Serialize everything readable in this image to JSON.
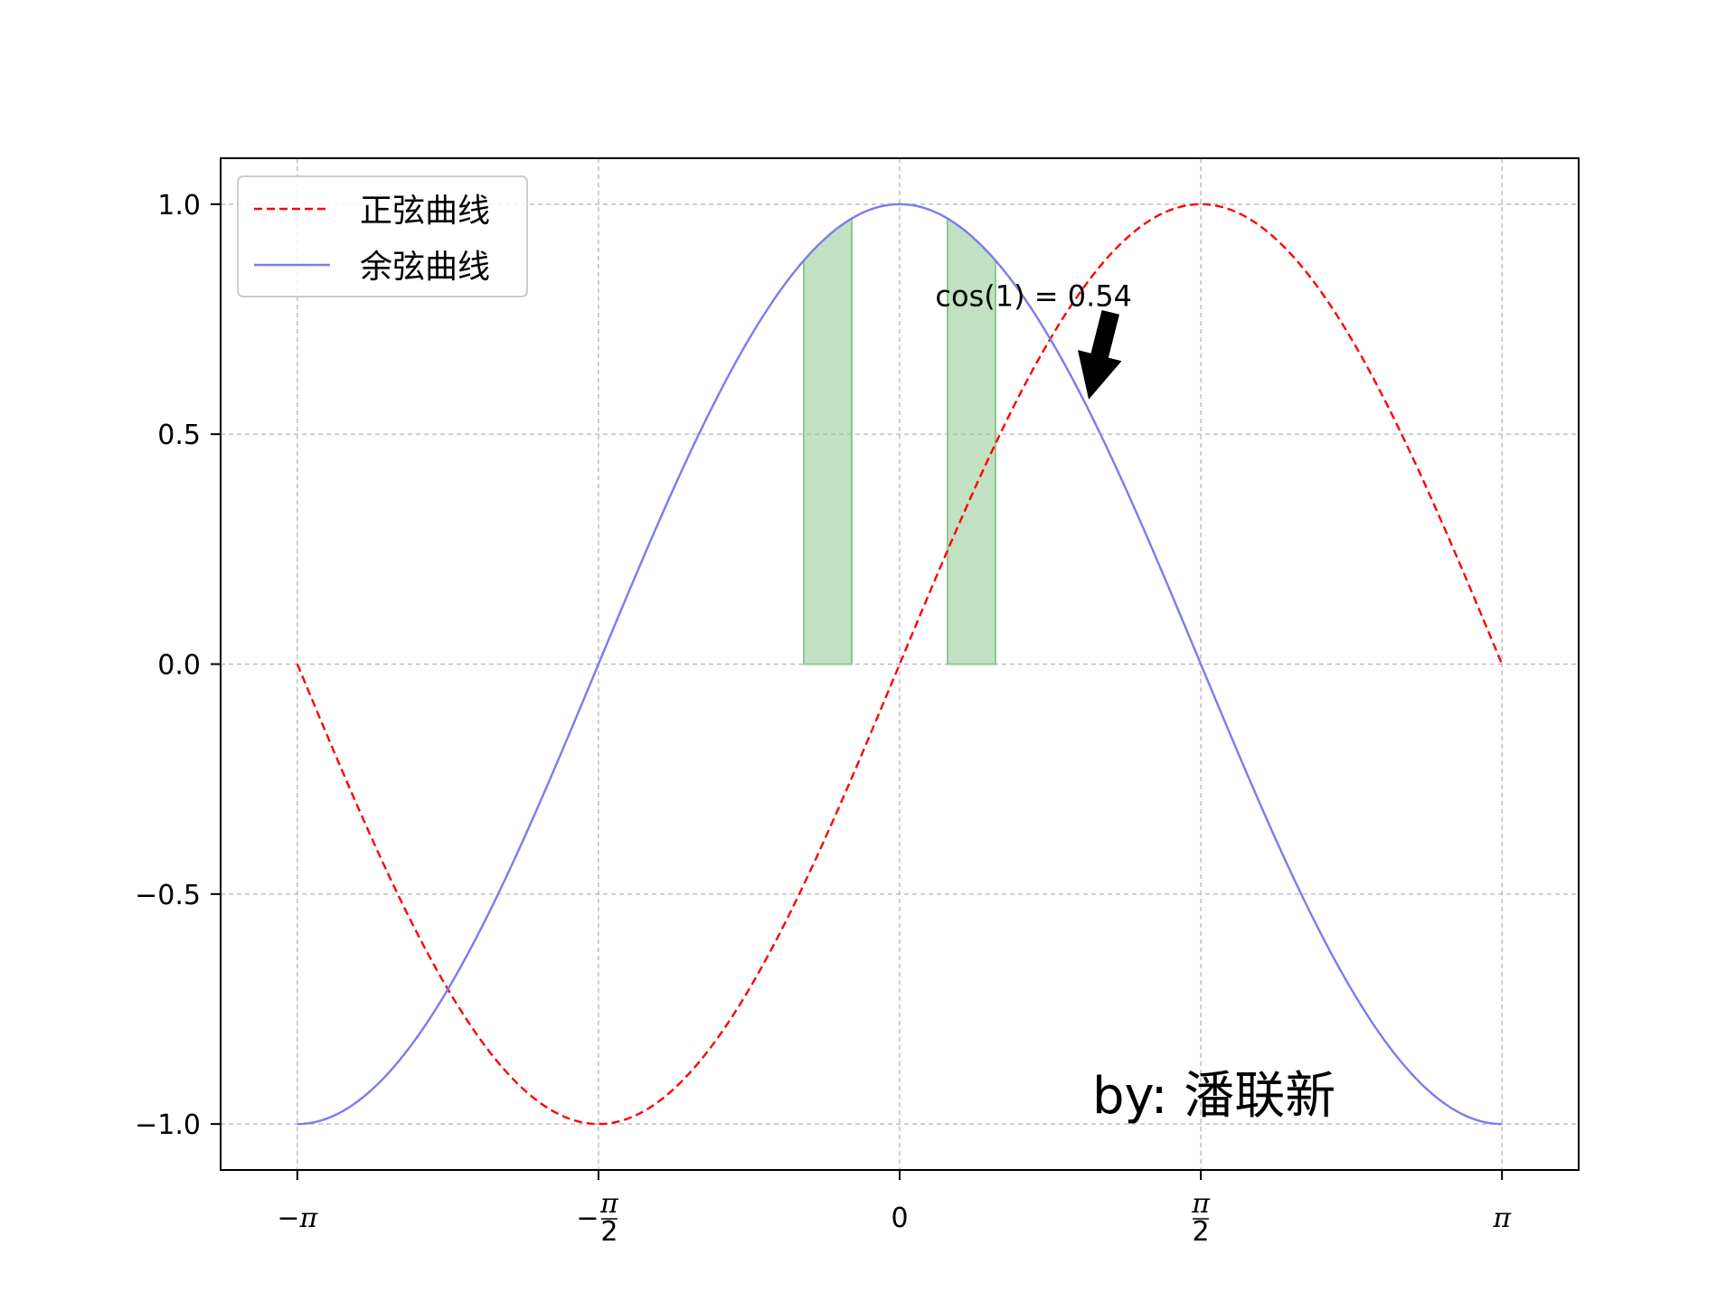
{
  "chart_data": {
    "type": "line",
    "title": "",
    "xlabel": "",
    "ylabel": "",
    "xlim": [
      -3.5416,
      3.5416
    ],
    "ylim": [
      -1.1,
      1.1
    ],
    "grid": true,
    "legend_position": "upper-left",
    "x_ticks": [
      {
        "value": -3.14159,
        "label": "−π"
      },
      {
        "value": -1.5708,
        "label": "−π/2"
      },
      {
        "value": 0,
        "label": "0"
      },
      {
        "value": 1.5708,
        "label": "π/2"
      },
      {
        "value": 3.14159,
        "label": "π"
      }
    ],
    "y_ticks": [
      {
        "value": 1.0,
        "label": "1.0"
      },
      {
        "value": 0.5,
        "label": "0.5"
      },
      {
        "value": 0.0,
        "label": "0.0"
      },
      {
        "value": -0.5,
        "label": "−0.5"
      },
      {
        "value": -1.0,
        "label": "−1.0"
      }
    ],
    "series": [
      {
        "name": "正弦曲线",
        "function": "sin",
        "color": "#ff0000",
        "style": "dashed",
        "x_range": [
          -3.14159,
          3.14159
        ],
        "samples": [
          [
            -3.1416,
            0.0
          ],
          [
            -2.3562,
            -0.7071
          ],
          [
            -1.5708,
            -1.0
          ],
          [
            -0.7854,
            -0.7071
          ],
          [
            0,
            0.0
          ],
          [
            0.7854,
            0.7071
          ],
          [
            1.5708,
            1.0
          ],
          [
            2.3562,
            0.7071
          ],
          [
            3.1416,
            0.0
          ]
        ]
      },
      {
        "name": "余弦曲线",
        "function": "cos",
        "color": "#7b7bf0",
        "style": "solid",
        "x_range": [
          -3.14159,
          3.14159
        ],
        "samples": [
          [
            -3.1416,
            -1.0
          ],
          [
            -2.3562,
            -0.7071
          ],
          [
            -1.5708,
            0.0
          ],
          [
            -0.7854,
            0.7071
          ],
          [
            0,
            1.0
          ],
          [
            0.7854,
            0.7071
          ],
          [
            1.5708,
            0.0
          ],
          [
            2.3562,
            -0.7071
          ],
          [
            3.1416,
            -1.0
          ]
        ]
      }
    ],
    "fills": [
      {
        "x_from": -0.5,
        "x_to": -0.25,
        "under": "cos",
        "color": "#8fc88f"
      },
      {
        "x_from": 0.25,
        "x_to": 0.5,
        "under": "cos",
        "color": "#8fc88f"
      }
    ],
    "annotation": {
      "text": "cos(1) = 0.54",
      "point": [
        1.0,
        0.5403
      ],
      "text_at": [
        0.2,
        0.8
      ]
    },
    "signature": "by: 潘联新"
  }
}
